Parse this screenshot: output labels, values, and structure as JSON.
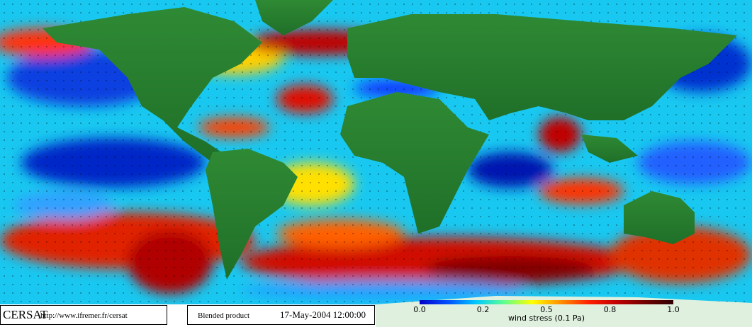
{
  "footer": {
    "logo": "CERSAT",
    "url": "http://www.ifremer.fr/cersat",
    "product": "Blended product",
    "date": "17-May-2004 12:00:00"
  },
  "colorbar": {
    "ticks": [
      "0.0",
      "0.2",
      "0.5",
      "0.8",
      "1.0"
    ],
    "label": "wind stress (0.1 Pa)"
  }
}
